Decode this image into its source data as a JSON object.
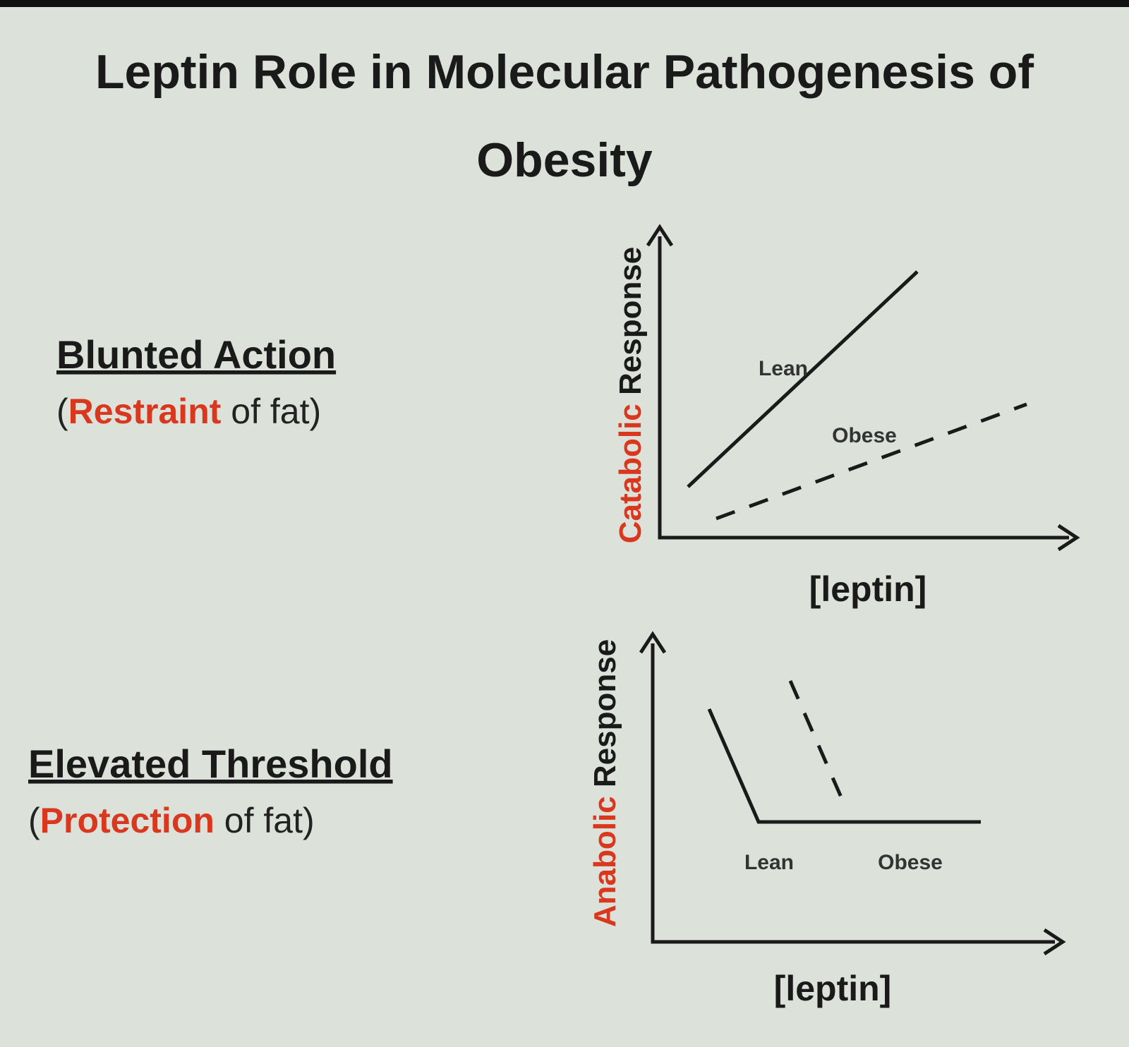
{
  "title": "Leptin Role in Molecular Pathogenesis of Obesity",
  "items": [
    {
      "heading": "Blunted Action",
      "note": [
        "(",
        "Restraint",
        " of fat)"
      ]
    },
    {
      "heading": "Elevated Threshold",
      "note": [
        "(",
        "Protection",
        " of fat)"
      ]
    }
  ],
  "graphs": [
    {
      "y_label": [
        "Catabolic",
        " Response"
      ],
      "x_label": "[leptin]",
      "curves": [
        "Lean",
        "Obese"
      ]
    },
    {
      "y_label": [
        "Anabolic",
        " Response"
      ],
      "x_label": "[leptin]",
      "curves": [
        "Lean",
        "Obese"
      ]
    }
  ]
}
